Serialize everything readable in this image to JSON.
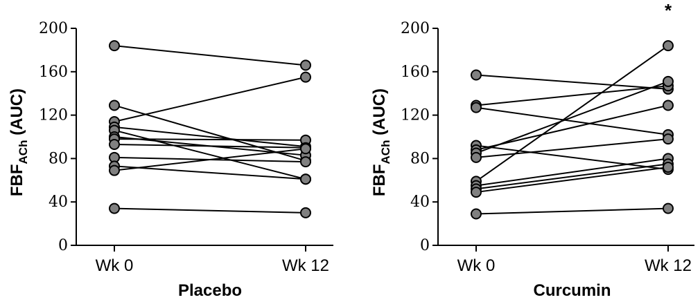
{
  "chart_data": [
    {
      "type": "line",
      "title": "",
      "xlabel": "Placebo",
      "ylabel_main": "FBF",
      "ylabel_sub": "ACh",
      "ylabel_tail": " (AUC)",
      "categories": [
        "Wk 0",
        "Wk 12"
      ],
      "ylim": [
        0,
        200
      ],
      "yticks": [
        0,
        40,
        80,
        120,
        160,
        200
      ],
      "grid": false,
      "point_color": "#808080",
      "line_color": "#000000",
      "annotation": "",
      "pairs": [
        [
          184,
          166
        ],
        [
          129,
          78
        ],
        [
          114,
          155
        ],
        [
          109,
          91
        ],
        [
          106,
          61
        ],
        [
          100,
          83
        ],
        [
          98,
          97
        ],
        [
          93,
          90
        ],
        [
          81,
          77
        ],
        [
          73,
          61
        ],
        [
          69,
          89
        ],
        [
          34,
          30
        ]
      ]
    },
    {
      "type": "line",
      "title": "",
      "xlabel": "Curcumin",
      "ylabel_main": "FBF",
      "ylabel_sub": "ACh",
      "ylabel_tail": " (AUC)",
      "categories": [
        "Wk 0",
        "Wk 12"
      ],
      "ylim": [
        0,
        200
      ],
      "yticks": [
        0,
        40,
        80,
        120,
        160,
        200
      ],
      "grid": false,
      "point_color": "#808080",
      "line_color": "#000000",
      "annotation": "*",
      "pairs": [
        [
          157,
          144
        ],
        [
          129,
          147
        ],
        [
          127,
          102
        ],
        [
          92,
          70
        ],
        [
          88,
          129
        ],
        [
          85,
          151
        ],
        [
          81,
          98
        ],
        [
          59,
          184
        ],
        [
          55,
          80
        ],
        [
          52,
          75
        ],
        [
          49,
          72
        ],
        [
          29,
          34
        ]
      ]
    }
  ]
}
